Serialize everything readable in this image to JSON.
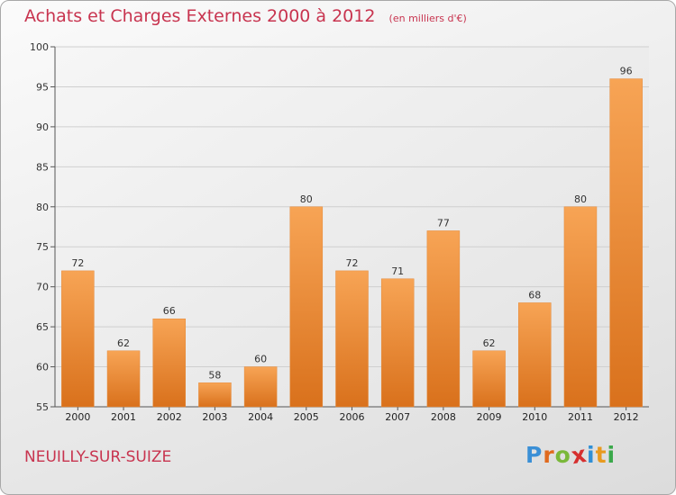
{
  "header": {
    "title": "Achats et Charges Externes 2000 à 2012",
    "unit": "(en milliers d'€)"
  },
  "footer": {
    "city": "NEUILLY-SUR-SUIZE",
    "logo_letters": [
      "P",
      "r",
      "o",
      "x",
      "i",
      "t",
      "i"
    ],
    "logo_colors": [
      "#3a8fd6",
      "#e06a1e",
      "#7ab83a",
      "#d62f2f",
      "#2f8fd6",
      "#e89a1f",
      "#3aa84a"
    ]
  },
  "chart_data": {
    "type": "bar",
    "title": "Achats et Charges Externes 2000 à 2012",
    "categories": [
      "2000",
      "2001",
      "2002",
      "2003",
      "2004",
      "2005",
      "2006",
      "2007",
      "2008",
      "2009",
      "2010",
      "2011",
      "2012"
    ],
    "values": [
      72,
      62,
      66,
      58,
      60,
      80,
      72,
      71,
      77,
      62,
      68,
      80,
      96
    ],
    "ylim": [
      55,
      100
    ],
    "yticks": [
      55,
      60,
      65,
      70,
      75,
      80,
      85,
      90,
      95,
      100
    ],
    "grid": true,
    "bar_color": "#f0882e"
  }
}
